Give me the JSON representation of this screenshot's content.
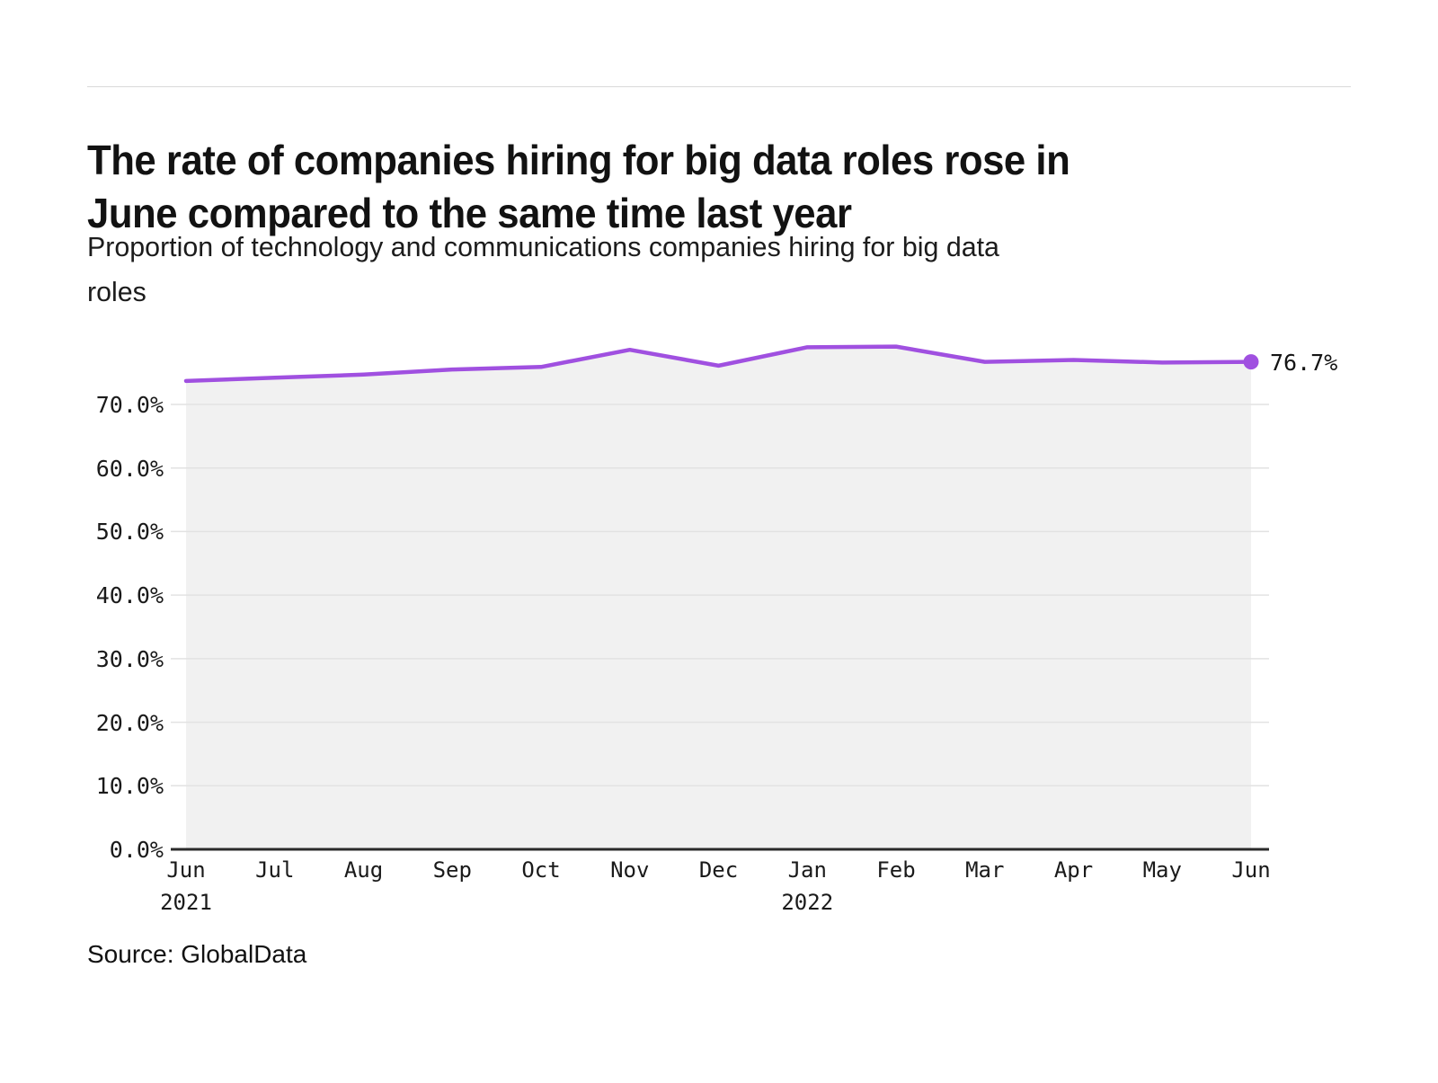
{
  "page": {
    "title_lines": [
      "The rate of companies hiring for big data roles rose in",
      "June compared to the same time last year"
    ],
    "subtitle_lines": [
      "Proportion of technology and communications companies hiring for big data",
      "roles"
    ],
    "source": "Source: GlobalData"
  },
  "chart_data": {
    "type": "area",
    "title": "The rate of companies hiring for big data roles rose in June compared to the same time last year",
    "subtitle": "Proportion of technology and communications companies hiring for big data roles",
    "categories": [
      "Jun 2021",
      "Jul",
      "Aug",
      "Sep",
      "Oct",
      "Nov",
      "Dec",
      "Jan 2022",
      "Feb",
      "Mar",
      "Apr",
      "May",
      "Jun"
    ],
    "series": [
      {
        "name": "Proportion of technology and communications companies hiring for big data roles",
        "values": [
          73.7,
          74.2,
          74.7,
          75.5,
          75.9,
          78.6,
          76.1,
          79.0,
          79.1,
          76.7,
          77.0,
          76.6,
          76.7
        ]
      }
    ],
    "end_label": "76.7%",
    "xlabel": "",
    "ylabel": "",
    "ylim": [
      0,
      80
    ],
    "grid": true,
    "legend": "none",
    "y_ticks": [
      {
        "value": 70,
        "label": "70.0%"
      },
      {
        "value": 60,
        "label": "60.0%"
      },
      {
        "value": 50,
        "label": "50.0%"
      },
      {
        "value": 40,
        "label": "40.0%"
      },
      {
        "value": 30,
        "label": "30.0%"
      },
      {
        "value": 20,
        "label": "20.0%"
      },
      {
        "value": 10,
        "label": "10.0%"
      },
      {
        "value": 0,
        "label": "0.0%"
      }
    ],
    "x_ticks": [
      "Jun",
      "Jul",
      "Aug",
      "Sep",
      "Oct",
      "Nov",
      "Dec",
      "Jan",
      "Feb",
      "Mar",
      "Apr",
      "May",
      "Jun"
    ],
    "x_year_labels": [
      {
        "index": 0,
        "label": "2021"
      },
      {
        "index": 7,
        "label": "2022"
      }
    ],
    "colors": {
      "line": "#a050e0",
      "marker": "#a050e0",
      "area_fill": "#f1f1f1",
      "gridline": "#e2e2e2",
      "axis": "#2b2b2b",
      "text": "#1a1a1a"
    }
  }
}
